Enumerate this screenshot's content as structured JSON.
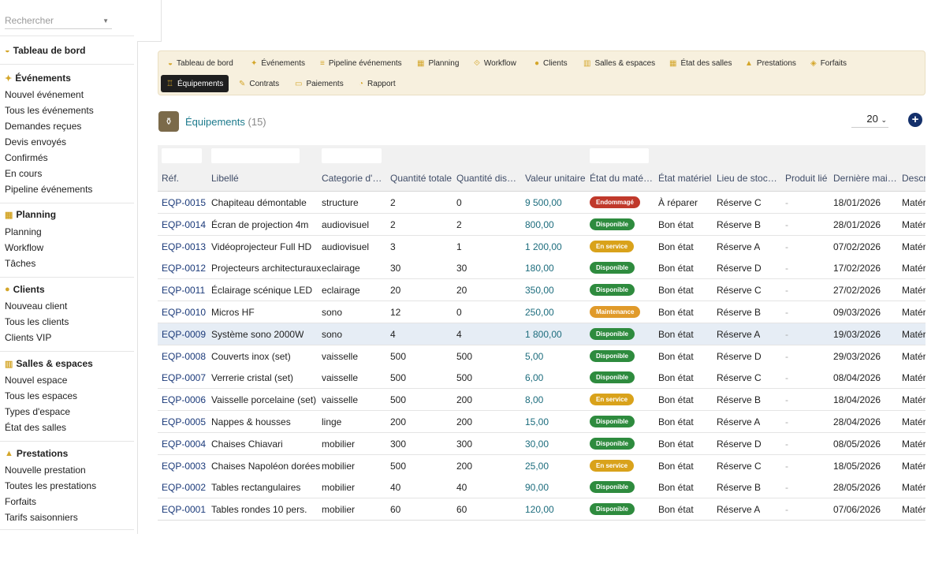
{
  "search": {
    "placeholder": "Rechercher"
  },
  "sidebar": {
    "sections": [
      {
        "title": "Tableau de bord",
        "icon": "dashboard-icon",
        "items": []
      },
      {
        "title": "Événements",
        "icon": "event-icon",
        "items": [
          "Nouvel événement",
          "Tous les événements",
          "Demandes reçues",
          "Devis envoyés",
          "Confirmés",
          "En cours",
          "Pipeline événements"
        ]
      },
      {
        "title": "Planning",
        "icon": "calendar-icon",
        "items": [
          "Planning",
          "Workflow",
          "Tâches"
        ]
      },
      {
        "title": "Clients",
        "icon": "user-icon",
        "items": [
          "Nouveau client",
          "Tous les clients",
          "Clients VIP"
        ]
      },
      {
        "title": "Salles & espaces",
        "icon": "building-icon",
        "items": [
          "Nouvel espace",
          "Tous les espaces",
          "Types d'espace",
          "État des salles"
        ]
      },
      {
        "title": "Prestations",
        "icon": "service-icon",
        "items": [
          "Nouvelle prestation",
          "Toutes les prestations",
          "Forfaits",
          "Tarifs saisonniers"
        ]
      }
    ]
  },
  "tabs": [
    {
      "label": "Tableau de bord",
      "icon": "dashboard-icon"
    },
    {
      "label": "Événements",
      "icon": "event-icon"
    },
    {
      "label": "Pipeline événements",
      "icon": "pipeline-icon"
    },
    {
      "label": "Planning",
      "icon": "calendar-icon"
    },
    {
      "label": "Workflow",
      "icon": "workflow-icon"
    },
    {
      "label": "Clients",
      "icon": "user-icon"
    },
    {
      "label": "Salles & espaces",
      "icon": "building-icon"
    },
    {
      "label": "État des salles",
      "icon": "grid-icon"
    },
    {
      "label": "Prestations",
      "icon": "service-icon"
    },
    {
      "label": "Forfaits",
      "icon": "package-icon"
    },
    {
      "label": "Équipements",
      "icon": "equipment-icon",
      "active": true
    },
    {
      "label": "Contrats",
      "icon": "contract-icon"
    },
    {
      "label": "Paiements",
      "icon": "payment-icon"
    },
    {
      "label": "Rapport",
      "icon": "report-icon"
    }
  ],
  "page": {
    "title": "Équipements",
    "count": "(15)",
    "per_page": "20",
    "add_label": "+"
  },
  "colors": {
    "accent": "#d4a62a",
    "active_tab": "#1f1f1f",
    "link": "#1b3a7a",
    "value": "#1c6c7d",
    "badge_disponible": "#2e8b3e",
    "badge_endommage": "#c0392b",
    "badge_en_service": "#d9a21b",
    "badge_maintenance": "#e09a2a"
  },
  "table": {
    "columns": [
      "Réf.",
      "Libellé",
      "Categorie d'…",
      "Quantité totale",
      "Quantité dis…",
      "Valeur unitaire",
      "État du maté…",
      "État matériel",
      "Lieu de stoc…",
      "Produit lié",
      "Dernière mai…",
      "Descr…"
    ],
    "rows": [
      [
        "EQP-0015",
        "Chapiteau démontable",
        "structure",
        "2",
        "0",
        "9 500,00",
        "Endommagé",
        "À réparer",
        "Réserve C",
        "-",
        "18/01/2026",
        "Matéri"
      ],
      [
        "EQP-0014",
        "Écran de projection 4m",
        "audiovisuel",
        "2",
        "2",
        "800,00",
        "Disponible",
        "Bon état",
        "Réserve B",
        "-",
        "28/01/2026",
        "Matéri"
      ],
      [
        "EQP-0013",
        "Vidéoprojecteur Full HD",
        "audiovisuel",
        "3",
        "1",
        "1 200,00",
        "En service",
        "Bon état",
        "Réserve A",
        "-",
        "07/02/2026",
        "Matéri"
      ],
      [
        "EQP-0012",
        "Projecteurs architecturaux",
        "eclairage",
        "30",
        "30",
        "180,00",
        "Disponible",
        "Bon état",
        "Réserve D",
        "-",
        "17/02/2026",
        "Matéri"
      ],
      [
        "EQP-0011",
        "Éclairage scénique LED",
        "eclairage",
        "20",
        "20",
        "350,00",
        "Disponible",
        "Bon état",
        "Réserve C",
        "-",
        "27/02/2026",
        "Matéri"
      ],
      [
        "EQP-0010",
        "Micros HF",
        "sono",
        "12",
        "0",
        "250,00",
        "Maintenance",
        "Bon état",
        "Réserve B",
        "-",
        "09/03/2026",
        "Matéri"
      ],
      [
        "EQP-0009",
        "Système sono 2000W",
        "sono",
        "4",
        "4",
        "1 800,00",
        "Disponible",
        "Bon état",
        "Réserve A",
        "-",
        "19/03/2026",
        "Matéri"
      ],
      [
        "EQP-0008",
        "Couverts inox (set)",
        "vaisselle",
        "500",
        "500",
        "5,00",
        "Disponible",
        "Bon état",
        "Réserve D",
        "-",
        "29/03/2026",
        "Matéri"
      ],
      [
        "EQP-0007",
        "Verrerie cristal (set)",
        "vaisselle",
        "500",
        "500",
        "6,00",
        "Disponible",
        "Bon état",
        "Réserve C",
        "-",
        "08/04/2026",
        "Matéri"
      ],
      [
        "EQP-0006",
        "Vaisselle porcelaine (set)",
        "vaisselle",
        "500",
        "200",
        "8,00",
        "En service",
        "Bon état",
        "Réserve B",
        "-",
        "18/04/2026",
        "Matéri"
      ],
      [
        "EQP-0005",
        "Nappes & housses",
        "linge",
        "200",
        "200",
        "15,00",
        "Disponible",
        "Bon état",
        "Réserve A",
        "-",
        "28/04/2026",
        "Matéri"
      ],
      [
        "EQP-0004",
        "Chaises Chiavari",
        "mobilier",
        "300",
        "300",
        "30,00",
        "Disponible",
        "Bon état",
        "Réserve D",
        "-",
        "08/05/2026",
        "Matéri"
      ],
      [
        "EQP-0003",
        "Chaises Napoléon dorées",
        "mobilier",
        "500",
        "200",
        "25,00",
        "En service",
        "Bon état",
        "Réserve C",
        "-",
        "18/05/2026",
        "Matéri"
      ],
      [
        "EQP-0002",
        "Tables rectangulaires",
        "mobilier",
        "40",
        "40",
        "90,00",
        "Disponible",
        "Bon état",
        "Réserve B",
        "-",
        "28/05/2026",
        "Matéri"
      ],
      [
        "EQP-0001",
        "Tables rondes 10 pers.",
        "mobilier",
        "60",
        "60",
        "120,00",
        "Disponible",
        "Bon état",
        "Réserve A",
        "-",
        "07/06/2026",
        "Matéri"
      ]
    ]
  }
}
